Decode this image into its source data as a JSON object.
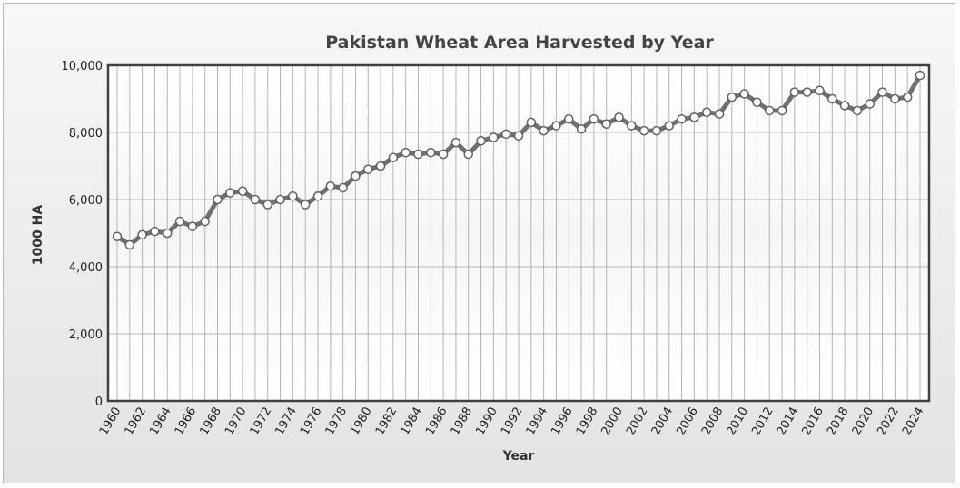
{
  "chart_data": {
    "type": "line",
    "title": "Pakistan Wheat Area Harvested by Year",
    "xlabel": "Year",
    "ylabel": "1000 HA",
    "ylim": [
      0,
      10000
    ],
    "yticks": [
      "0",
      "2,000",
      "4,000",
      "6,000",
      "8,000",
      "10,000"
    ],
    "xlim": [
      1960,
      2024
    ],
    "grid": true,
    "legend": "none",
    "colors": {
      "line": "#707070",
      "marker_fill": "#ffffff",
      "marker_stroke": "#606060",
      "grid": "#b4b4b4",
      "plot_border": "#404040"
    },
    "x": [
      1960,
      1961,
      1962,
      1963,
      1964,
      1965,
      1966,
      1967,
      1968,
      1969,
      1970,
      1971,
      1972,
      1973,
      1974,
      1975,
      1976,
      1977,
      1978,
      1979,
      1980,
      1981,
      1982,
      1983,
      1984,
      1985,
      1986,
      1987,
      1988,
      1989,
      1990,
      1991,
      1992,
      1993,
      1994,
      1995,
      1996,
      1997,
      1998,
      1999,
      2000,
      2001,
      2002,
      2003,
      2004,
      2005,
      2006,
      2007,
      2008,
      2009,
      2010,
      2011,
      2012,
      2013,
      2014,
      2015,
      2016,
      2017,
      2018,
      2019,
      2020,
      2021,
      2022,
      2023,
      2024
    ],
    "series": [
      {
        "values": [
          4900,
          4650,
          4950,
          5050,
          5000,
          5350,
          5200,
          5350,
          6000,
          6200,
          6250,
          6000,
          5850,
          6000,
          6100,
          5850,
          6100,
          6400,
          6350,
          6700,
          6900,
          7000,
          7250,
          7400,
          7350,
          7400,
          7350,
          7700,
          7350,
          7750,
          7850,
          7950,
          7900,
          8300,
          8050,
          8200,
          8400,
          8100,
          8400,
          8250,
          8450,
          8200,
          8050,
          8050,
          8200,
          8400,
          8450,
          8600,
          8550,
          9050,
          9150,
          8900,
          8650,
          8650,
          9200,
          9200,
          9250,
          9000,
          8800,
          8650,
          8850,
          9200,
          9000,
          9050,
          9700
        ]
      }
    ]
  }
}
